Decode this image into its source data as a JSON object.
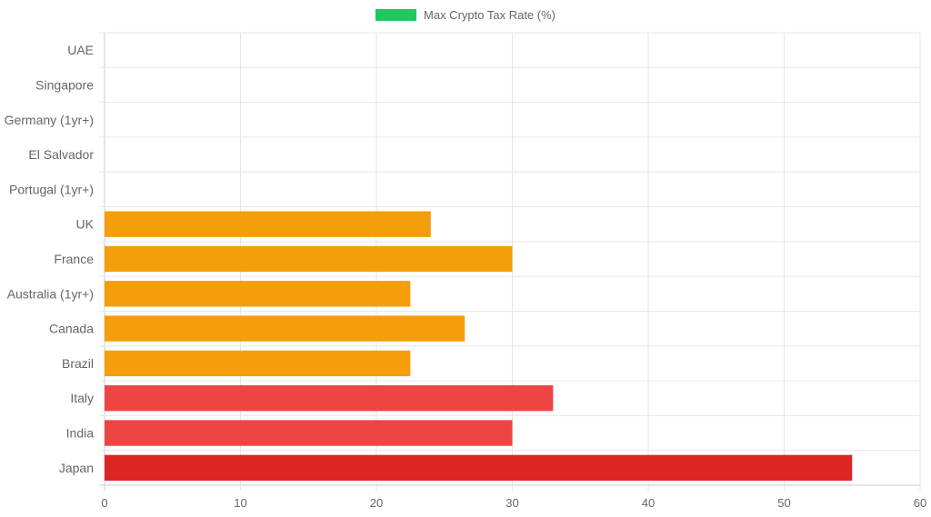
{
  "chart_data": {
    "type": "bar",
    "orientation": "horizontal",
    "legend": {
      "position": "top-center",
      "entries": [
        {
          "label": "Max Crypto Tax Rate (%)",
          "color": "#22c55e"
        }
      ]
    },
    "categories": [
      "UAE",
      "Singapore",
      "Germany (1yr+)",
      "El Salvador",
      "Portugal (1yr+)",
      "UK",
      "France",
      "Australia (1yr+)",
      "Canada",
      "Brazil",
      "Italy",
      "India",
      "Japan"
    ],
    "series": [
      {
        "name": "Max Crypto Tax Rate (%)",
        "values": [
          0,
          0,
          0,
          0,
          0,
          24,
          30,
          22.5,
          26.5,
          22.5,
          33,
          30,
          55
        ],
        "colors": [
          "#f59e0b",
          "#f59e0b",
          "#f59e0b",
          "#f59e0b",
          "#f59e0b",
          "#f59e0b",
          "#f59e0b",
          "#f59e0b",
          "#f59e0b",
          "#f59e0b",
          "#ef4444",
          "#ef4444",
          "#dc2626"
        ]
      }
    ],
    "xlim": [
      0,
      60
    ],
    "x_ticks": [
      0,
      10,
      20,
      30,
      40,
      50,
      60
    ],
    "grid": true
  }
}
